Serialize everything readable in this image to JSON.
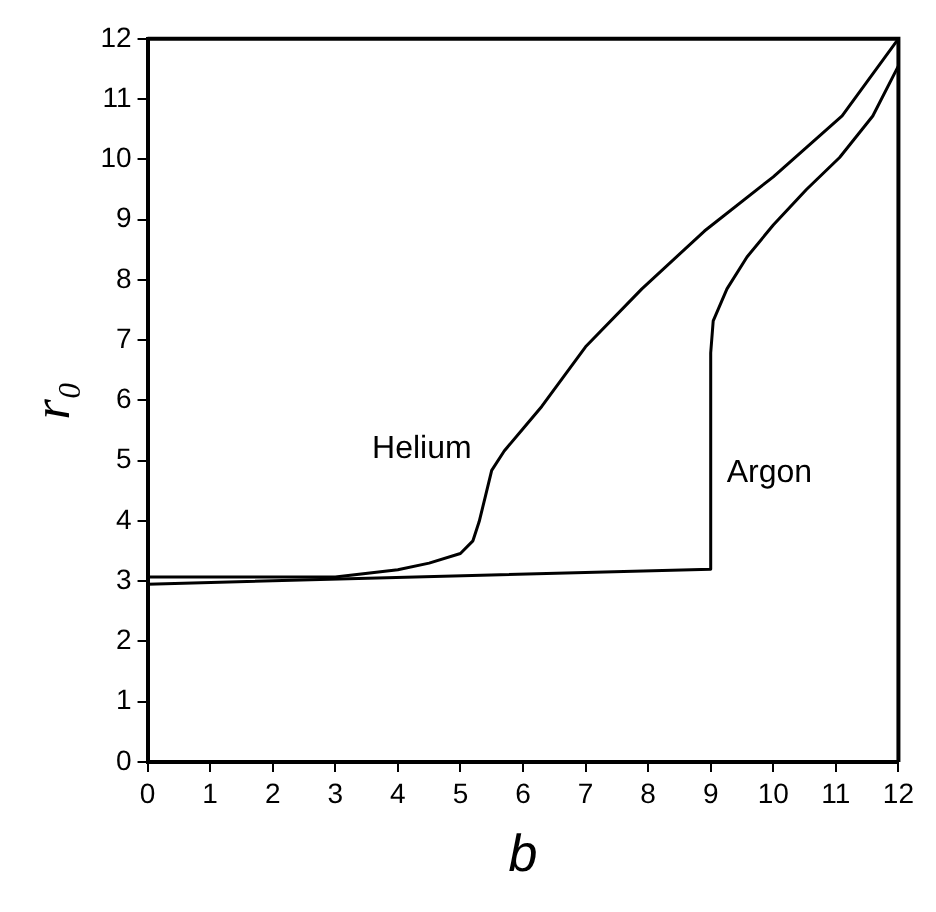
{
  "chart_data": {
    "type": "line",
    "xlabel": "b",
    "ylabel": "r₀",
    "xlim": [
      0,
      12
    ],
    "ylim": [
      0,
      12
    ],
    "xticks": [
      0,
      1,
      2,
      3,
      4,
      5,
      6,
      7,
      8,
      9,
      10,
      11,
      12
    ],
    "yticks": [
      0,
      1,
      2,
      3,
      4,
      5,
      6,
      7,
      8,
      9,
      10,
      11,
      12
    ],
    "grid": false,
    "legend": false,
    "marker": "none",
    "line_style": "solid",
    "series": [
      {
        "name": "Helium",
        "color": "#000000",
        "x": [
          0,
          1,
          2,
          3,
          4,
          4.5,
          5,
          5.2,
          5.3,
          5.4,
          5.5,
          5.7,
          6,
          6.3,
          7,
          7.9,
          8.9,
          10,
          11.1,
          12
        ],
        "values": [
          3.07,
          3.07,
          3.07,
          3.07,
          3.19,
          3.3,
          3.46,
          3.67,
          3.99,
          4.41,
          4.84,
          5.16,
          5.53,
          5.9,
          6.89,
          7.85,
          8.81,
          9.71,
          10.72,
          12
        ]
      },
      {
        "name": "Argon",
        "color": "#000000",
        "x": [
          0,
          9,
          9,
          9.04,
          9.26,
          9.58,
          10,
          10.53,
          11.06,
          11.59,
          12
        ],
        "values": [
          2.95,
          3.2,
          6.79,
          7.32,
          7.85,
          8.38,
          8.91,
          9.5,
          10.03,
          10.72,
          11.55
        ]
      }
    ]
  }
}
